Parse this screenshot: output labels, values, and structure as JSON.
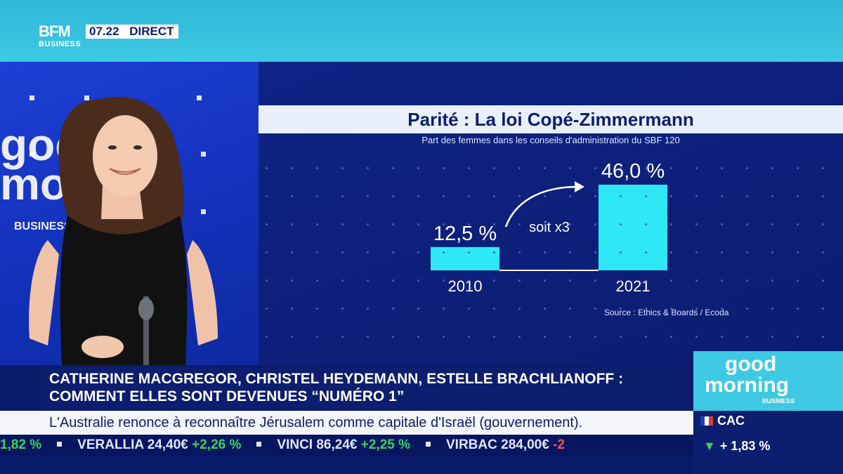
{
  "channel": {
    "logo_main": "BFM",
    "logo_sub": "BUSINESS",
    "time": "07.22",
    "live": "DIRECT"
  },
  "studio_brand": {
    "line1": "good",
    "line2": "morning",
    "line3": "BUSINESS"
  },
  "chart": {
    "title": "Parité : La loi Copé-Zimmermann",
    "subtitle": "Part des femmes dans les conseils d'administration du SBF 120",
    "source": "Source : Ethics & Boards / Ecoda",
    "annotation": "soit x3",
    "colors": {
      "bar": "#2ee8f7",
      "background": "#0e2384"
    }
  },
  "chart_data": {
    "type": "bar",
    "categories": [
      "2010",
      "2021"
    ],
    "values": [
      12.5,
      46.0
    ],
    "value_labels": [
      "12,5 %",
      "46,0 %"
    ],
    "title": "Parité : La loi Copé-Zimmermann",
    "subtitle": "Part des femmes dans les conseils d'administration du SBF 120",
    "ylim": [
      0,
      46.0
    ],
    "grid": false,
    "legend": "none"
  },
  "headline": {
    "line1": "Catherine MacGregor, Christel Heydemann, Estelle Brachlianoff :",
    "line2": "comment elles sont devenues “numéro 1”"
  },
  "show_brand": {
    "line1": "good",
    "line2": "morning",
    "line3": "BUSINESS"
  },
  "news": "L'Australie renonce à reconnaître Jérusalem comme capitale d'Israël (gouvernement).",
  "index": {
    "name": "CAC",
    "change": "+ 1,83 %",
    "flag_colors": [
      "#1f3fb8",
      "#ffffff",
      "#e53935"
    ]
  },
  "stocks": [
    {
      "name": "",
      "change": "1,82 %",
      "dir": "up"
    },
    {
      "name": "VERALLIA",
      "price": "24,40€",
      "change": "+2,26 %",
      "dir": "up"
    },
    {
      "name": "VINCI",
      "price": "86,24€",
      "change": "+2,25 %",
      "dir": "up"
    },
    {
      "name": "VIRBAC",
      "price": "284,00€",
      "change": "-2",
      "dir": "down"
    }
  ]
}
